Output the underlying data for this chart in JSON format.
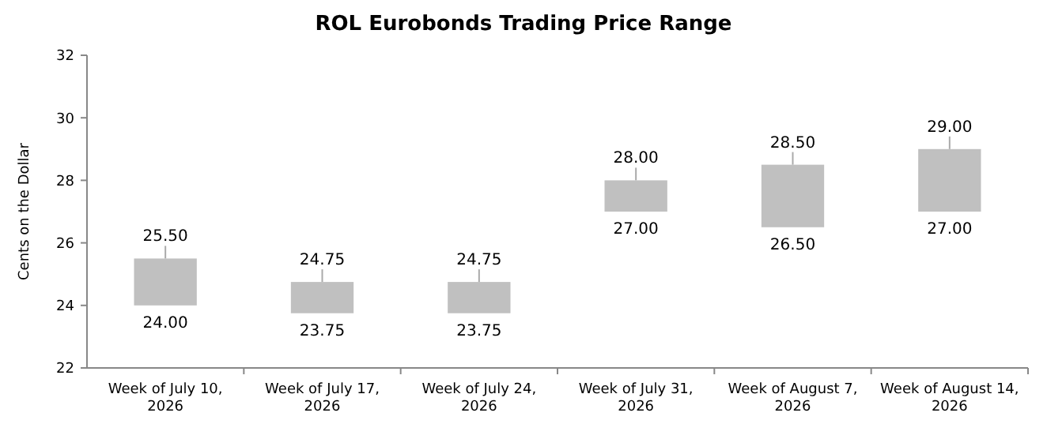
{
  "chart_data": {
    "type": "bar",
    "title": "ROL Eurobonds Trading Price Range",
    "ylabel": "Cents on the Dollar",
    "categories": [
      "Week of July 10, 2026",
      "Week of July 17, 2026",
      "Week of July 24, 2026",
      "Week of July 31, 2026",
      "Week of August 7, 2026",
      "Week of August 14, 2026"
    ],
    "base": [
      24,
      23.75,
      23.75,
      27,
      26.5,
      27
    ],
    "values": [
      1.5,
      1,
      1,
      1,
      2,
      2
    ],
    "color": "#c0c0c0",
    "ylim": [
      22,
      32
    ],
    "yticks": [
      22,
      24,
      26,
      28,
      30,
      32
    ],
    "grid": false,
    "annotations": [
      {
        "text": "25.50",
        "x": "Week of July 10, 2026",
        "y": 25.5
      },
      {
        "text": "24.00",
        "x": "Week of July 10, 2026",
        "y": 24
      },
      {
        "text": "24.75",
        "x": "Week of July 17, 2026",
        "y": 24.75
      },
      {
        "text": "23.75",
        "x": "Week of July 17, 2026",
        "y": 23.75
      },
      {
        "text": "24.75",
        "x": "Week of July 24, 2026",
        "y": 24.75
      },
      {
        "text": "23.75",
        "x": "Week of July 24, 2026",
        "y": 23.75
      },
      {
        "text": "28.00",
        "x": "Week of July 31, 2026",
        "y": 28
      },
      {
        "text": "27.00",
        "x": "Week of July 31, 2026",
        "y": 27
      },
      {
        "text": "28.50",
        "x": "Week of August 7, 2026",
        "y": 28.5
      },
      {
        "text": "26.50",
        "x": "Week of August 7, 2026",
        "y": 26.5
      },
      {
        "text": "29.00",
        "x": "Week of August 14, 2026",
        "y": 29
      },
      {
        "text": "27.00",
        "x": "Week of August 14, 2026",
        "y": 27
      }
    ]
  }
}
